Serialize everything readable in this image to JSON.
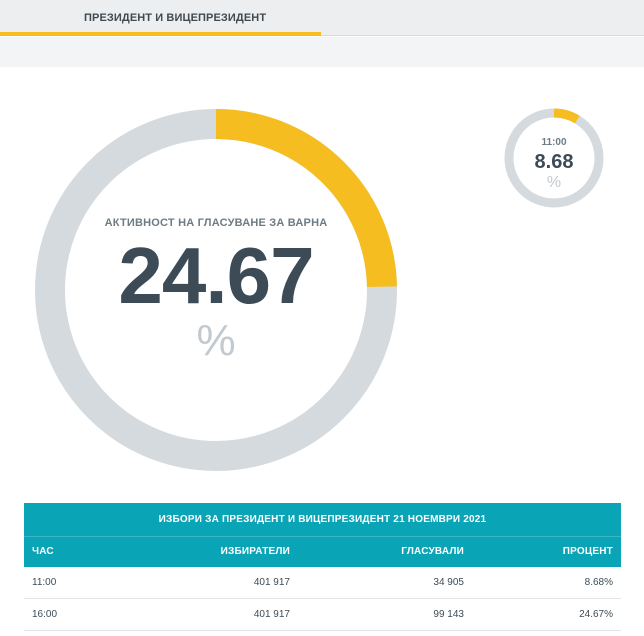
{
  "tab": {
    "label": "ПРЕЗИДЕНТ И ВИЦЕПРЕЗИДЕНТ"
  },
  "colors": {
    "accent": "#f5bd1f",
    "track": "#d4dade",
    "table_header": "#0aa4b7"
  },
  "main_gauge": {
    "label": "АКТИВНОСТ НА ГЛАСУВАНЕ ЗА ВАРНА",
    "value": "24.67",
    "unit": "%",
    "fraction": 0.2467
  },
  "hour_gauge": {
    "time": "11:00",
    "value": "8.68",
    "unit": "%",
    "fraction": 0.0868
  },
  "table": {
    "title": "ИЗБОРИ ЗА ПРЕЗИДЕНТ И ВИЦЕПРЕЗИДЕНТ 21 НОЕМВРИ 2021",
    "headers": {
      "hour": "ЧАС",
      "voters": "ИЗБИРАТЕЛИ",
      "voted": "ГЛАСУВАЛИ",
      "percent": "ПРОЦЕНТ"
    },
    "rows": [
      {
        "hour": "11:00",
        "voters": "401 917",
        "voted": "34 905",
        "percent": "8.68%"
      },
      {
        "hour": "16:00",
        "voters": "401 917",
        "voted": "99 143",
        "percent": "24.67%"
      }
    ]
  }
}
